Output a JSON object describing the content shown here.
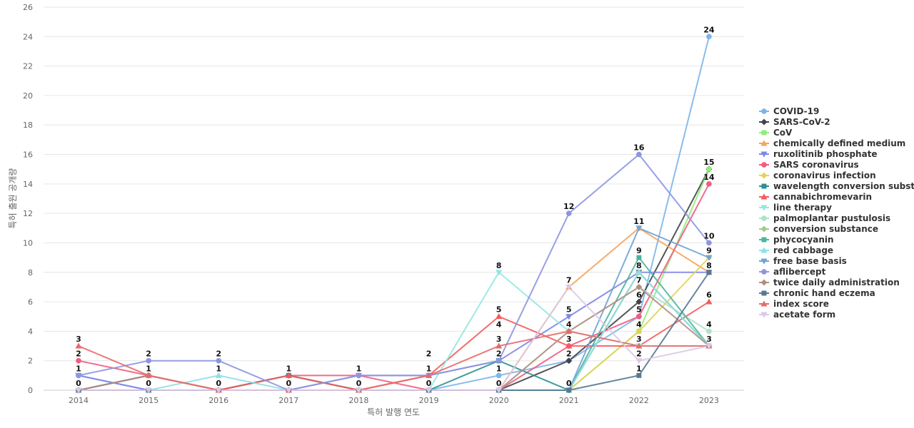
{
  "chart_data": {
    "type": "line",
    "xlabel": "특허 발행 연도",
    "ylabel": "특허 출원 공개량",
    "x": [
      "2014",
      "2015",
      "2016",
      "2017",
      "2018",
      "2019",
      "2020",
      "2021",
      "2022",
      "2023"
    ],
    "ylim": [
      0,
      26
    ],
    "yticks": [
      0,
      2,
      4,
      6,
      8,
      10,
      12,
      14,
      16,
      18,
      20,
      22,
      24,
      26
    ],
    "grid": true,
    "legend_position": "right",
    "series": [
      {
        "name": "COVID-19",
        "color": "#7cb5ec",
        "marker": "circle",
        "values": [
          1,
          0,
          0,
          0,
          0,
          0,
          1,
          2,
          5,
          24
        ]
      },
      {
        "name": "SARS-CoV-2",
        "color": "#434348",
        "marker": "diamond",
        "values": [
          0,
          1,
          0,
          1,
          0,
          0,
          0,
          2,
          6,
          15
        ]
      },
      {
        "name": "CoV",
        "color": "#90ed7d",
        "marker": "square",
        "values": [
          0,
          0,
          0,
          0,
          0,
          0,
          0,
          0,
          4,
          15
        ]
      },
      {
        "name": "chemically defined medium",
        "color": "#f7a35c",
        "marker": "triangle",
        "values": [
          0,
          0,
          0,
          0,
          0,
          0,
          0,
          7,
          11,
          8
        ]
      },
      {
        "name": "ruxolitinib phosphate",
        "color": "#8085e9",
        "marker": "triangle-down",
        "values": [
          1,
          0,
          0,
          0,
          1,
          1,
          2,
          5,
          8,
          8
        ]
      },
      {
        "name": "SARS coronavirus",
        "color": "#f15c80",
        "marker": "circle",
        "values": [
          2,
          1,
          0,
          1,
          1,
          0,
          0,
          3,
          5,
          14
        ]
      },
      {
        "name": "coronavirus infection",
        "color": "#e4d354",
        "marker": "diamond",
        "values": [
          0,
          0,
          0,
          0,
          0,
          0,
          0,
          0,
          4,
          9
        ]
      },
      {
        "name": "wavelength conversion subst...",
        "color": "#2b908f",
        "marker": "square",
        "values": [
          0,
          0,
          0,
          1,
          0,
          0,
          2,
          0,
          8,
          3
        ]
      },
      {
        "name": "cannabichromevarin",
        "color": "#f45b5b",
        "marker": "triangle",
        "values": [
          0,
          0,
          0,
          1,
          0,
          1,
          5,
          3,
          3,
          6
        ]
      },
      {
        "name": "line therapy",
        "color": "#91e8e1",
        "marker": "triangle-down",
        "values": [
          0,
          0,
          0,
          0,
          0,
          0,
          8,
          4,
          3,
          3
        ]
      },
      {
        "name": "palmoplantar pustulosis",
        "color": "#b2e0c8",
        "marker": "circle",
        "values": [
          0,
          0,
          0,
          0,
          0,
          0,
          0,
          4,
          7,
          4
        ]
      },
      {
        "name": "conversion substance",
        "color": "#a0c890",
        "marker": "diamond",
        "values": [
          0,
          0,
          0,
          0,
          0,
          0,
          0,
          0,
          8,
          3
        ]
      },
      {
        "name": "phycocyanin",
        "color": "#4cb59c",
        "marker": "square",
        "values": [
          0,
          0,
          0,
          0,
          0,
          0,
          0,
          0,
          9,
          3
        ]
      },
      {
        "name": "red cabbage",
        "color": "#8fdfe8",
        "marker": "triangle",
        "values": [
          0,
          0,
          1,
          0,
          0,
          0,
          0,
          0,
          8,
          3
        ]
      },
      {
        "name": "free base basis",
        "color": "#6fa3d6",
        "marker": "triangle-down",
        "values": [
          0,
          0,
          0,
          0,
          0,
          0,
          0,
          0,
          11,
          9
        ]
      },
      {
        "name": "aflibercept",
        "color": "#8c96e0",
        "marker": "circle",
        "values": [
          1,
          2,
          2,
          0,
          1,
          1,
          2,
          12,
          16,
          10
        ]
      },
      {
        "name": "twice daily administration",
        "color": "#b38d83",
        "marker": "diamond",
        "values": [
          0,
          1,
          0,
          0,
          0,
          0,
          0,
          4,
          7,
          3
        ]
      },
      {
        "name": "chronic hand eczema",
        "color": "#547a8f",
        "marker": "square",
        "values": [
          0,
          0,
          0,
          0,
          0,
          0,
          0,
          0,
          1,
          8
        ]
      },
      {
        "name": "index score",
        "color": "#e86a6a",
        "marker": "triangle",
        "values": [
          3,
          1,
          0,
          0,
          0,
          1,
          3,
          4,
          3,
          3
        ]
      },
      {
        "name": "acetate form",
        "color": "#dcc8e6",
        "marker": "triangle-down",
        "values": [
          0,
          0,
          0,
          0,
          0,
          0,
          0,
          7,
          2,
          3
        ]
      }
    ],
    "data_labels": [
      {
        "x": "2014",
        "text": "3",
        "y": 3
      },
      {
        "x": "2014",
        "text": "2",
        "y": 2
      },
      {
        "x": "2014",
        "text": "1",
        "y": 1
      },
      {
        "x": "2014",
        "text": "0",
        "y": 0
      },
      {
        "x": "2015",
        "text": "2",
        "y": 2
      },
      {
        "x": "2015",
        "text": "1",
        "y": 1
      },
      {
        "x": "2015",
        "text": "0",
        "y": 0
      },
      {
        "x": "2016",
        "text": "2",
        "y": 2
      },
      {
        "x": "2016",
        "text": "1",
        "y": 1
      },
      {
        "x": "2016",
        "text": "0",
        "y": 0
      },
      {
        "x": "2017",
        "text": "1",
        "y": 1
      },
      {
        "x": "2017",
        "text": "0",
        "y": 0
      },
      {
        "x": "2018",
        "text": "1",
        "y": 1
      },
      {
        "x": "2018",
        "text": "0",
        "y": 0
      },
      {
        "x": "2019",
        "text": "2",
        "y": 2
      },
      {
        "x": "2019",
        "text": "1",
        "y": 1
      },
      {
        "x": "2019",
        "text": "0",
        "y": 0
      },
      {
        "x": "2020",
        "text": "8",
        "y": 8
      },
      {
        "x": "2020",
        "text": "5",
        "y": 5
      },
      {
        "x": "2020",
        "text": "4",
        "y": 4
      },
      {
        "x": "2020",
        "text": "3",
        "y": 3
      },
      {
        "x": "2020",
        "text": "2",
        "y": 2
      },
      {
        "x": "2020",
        "text": "1",
        "y": 1
      },
      {
        "x": "2020",
        "text": "0",
        "y": 0
      },
      {
        "x": "2021",
        "text": "12",
        "y": 12
      },
      {
        "x": "2021",
        "text": "7",
        "y": 7
      },
      {
        "x": "2021",
        "text": "5",
        "y": 5
      },
      {
        "x": "2021",
        "text": "4",
        "y": 4
      },
      {
        "x": "2021",
        "text": "3",
        "y": 3
      },
      {
        "x": "2021",
        "text": "2",
        "y": 2
      },
      {
        "x": "2021",
        "text": "0",
        "y": 0
      },
      {
        "x": "2022",
        "text": "16",
        "y": 16
      },
      {
        "x": "2022",
        "text": "11",
        "y": 11
      },
      {
        "x": "2022",
        "text": "9",
        "y": 9
      },
      {
        "x": "2022",
        "text": "8",
        "y": 8
      },
      {
        "x": "2022",
        "text": "7",
        "y": 7
      },
      {
        "x": "2022",
        "text": "6",
        "y": 6
      },
      {
        "x": "2022",
        "text": "5",
        "y": 5
      },
      {
        "x": "2022",
        "text": "4",
        "y": 4
      },
      {
        "x": "2022",
        "text": "3",
        "y": 3
      },
      {
        "x": "2022",
        "text": "2",
        "y": 2
      },
      {
        "x": "2022",
        "text": "1",
        "y": 1
      },
      {
        "x": "2023",
        "text": "24",
        "y": 24
      },
      {
        "x": "2023",
        "text": "15",
        "y": 15
      },
      {
        "x": "2023",
        "text": "14",
        "y": 14
      },
      {
        "x": "2023",
        "text": "10",
        "y": 10
      },
      {
        "x": "2023",
        "text": "9",
        "y": 9
      },
      {
        "x": "2023",
        "text": "8",
        "y": 8
      },
      {
        "x": "2023",
        "text": "6",
        "y": 6
      },
      {
        "x": "2023",
        "text": "4",
        "y": 4
      },
      {
        "x": "2023",
        "text": "3",
        "y": 3
      }
    ]
  }
}
